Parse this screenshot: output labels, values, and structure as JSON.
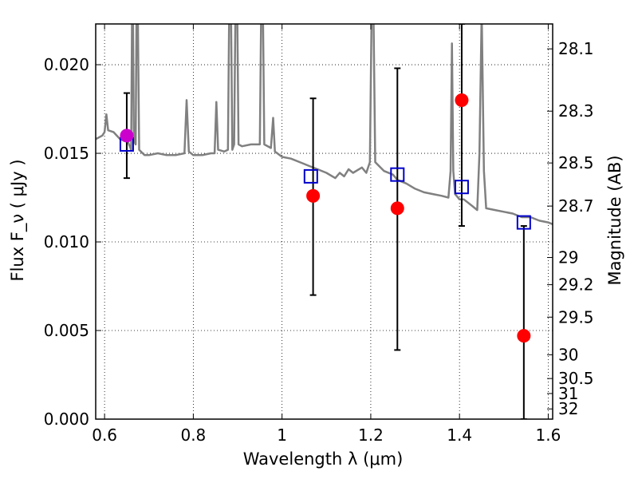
{
  "chart_data": {
    "type": "scatter",
    "xlabel": "Wavelength  λ (μm)",
    "ylabel": "Flux  F_ν  ( μJy )",
    "y2label": "Magnitude (AB)",
    "xlim": [
      0.58,
      1.61
    ],
    "ylim": [
      0.0,
      0.0223
    ],
    "grid": true,
    "x_ticks": [
      {
        "value": 0.6,
        "label": "0.6"
      },
      {
        "value": 0.8,
        "label": "0.8"
      },
      {
        "value": 1.0,
        "label": "1"
      },
      {
        "value": 1.2,
        "label": "1.2"
      },
      {
        "value": 1.4,
        "label": "1.4"
      },
      {
        "value": 1.6,
        "label": "1.6"
      }
    ],
    "y_ticks": [
      {
        "value": 0.0,
        "label": "0.000"
      },
      {
        "value": 0.005,
        "label": "0.005"
      },
      {
        "value": 0.01,
        "label": "0.010"
      },
      {
        "value": 0.015,
        "label": "0.015"
      },
      {
        "value": 0.02,
        "label": "0.020"
      }
    ],
    "mag_ticks": [
      {
        "value": 28.1,
        "label": "28.1"
      },
      {
        "value": 28.3,
        "label": "28.3"
      },
      {
        "value": 28.5,
        "label": "28.5"
      },
      {
        "value": 28.7,
        "label": "28.7"
      },
      {
        "value": 29.0,
        "label": "29"
      },
      {
        "value": 29.2,
        "label": "29.2"
      },
      {
        "value": 29.5,
        "label": "29.5"
      },
      {
        "value": 30.0,
        "label": "30"
      },
      {
        "value": 30.5,
        "label": "30.5"
      },
      {
        "value": 31.0,
        "label": "31"
      },
      {
        "value": 32.0,
        "label": "32"
      }
    ],
    "series": [
      {
        "kind": "line",
        "color": "#808080",
        "points": [
          [
            0.58,
            0.0158
          ],
          [
            0.595,
            0.016
          ],
          [
            0.6,
            0.0162
          ],
          [
            0.604,
            0.0172
          ],
          [
            0.608,
            0.0163
          ],
          [
            0.62,
            0.0162
          ],
          [
            0.635,
            0.0158
          ],
          [
            0.645,
            0.0157
          ],
          [
            0.65,
            0.0158
          ],
          [
            0.655,
            0.0155
          ],
          [
            0.66,
            0.0152
          ],
          [
            0.662,
            0.023
          ],
          [
            0.664,
            0.023
          ],
          [
            0.666,
            0.016
          ],
          [
            0.668,
            0.0156
          ],
          [
            0.67,
            0.0155
          ],
          [
            0.672,
            0.023
          ],
          [
            0.675,
            0.023
          ],
          [
            0.678,
            0.0152
          ],
          [
            0.69,
            0.0149
          ],
          [
            0.7,
            0.0149
          ],
          [
            0.72,
            0.015
          ],
          [
            0.74,
            0.0149
          ],
          [
            0.76,
            0.0149
          ],
          [
            0.78,
            0.015
          ],
          [
            0.785,
            0.018
          ],
          [
            0.79,
            0.0151
          ],
          [
            0.8,
            0.0149
          ],
          [
            0.82,
            0.0149
          ],
          [
            0.84,
            0.015
          ],
          [
            0.848,
            0.015
          ],
          [
            0.852,
            0.0179
          ],
          [
            0.856,
            0.0152
          ],
          [
            0.87,
            0.0151
          ],
          [
            0.878,
            0.0152
          ],
          [
            0.881,
            0.023
          ],
          [
            0.885,
            0.023
          ],
          [
            0.888,
            0.0152
          ],
          [
            0.892,
            0.0155
          ],
          [
            0.895,
            0.023
          ],
          [
            0.899,
            0.023
          ],
          [
            0.902,
            0.0155
          ],
          [
            0.91,
            0.0154
          ],
          [
            0.93,
            0.0155
          ],
          [
            0.95,
            0.0155
          ],
          [
            0.953,
            0.023
          ],
          [
            0.957,
            0.023
          ],
          [
            0.96,
            0.0155
          ],
          [
            0.975,
            0.0153
          ],
          [
            0.98,
            0.017
          ],
          [
            0.984,
            0.0151
          ],
          [
            1.0,
            0.0148
          ],
          [
            1.02,
            0.0147
          ],
          [
            1.04,
            0.0145
          ],
          [
            1.06,
            0.0143
          ],
          [
            1.08,
            0.0141
          ],
          [
            1.1,
            0.0139
          ],
          [
            1.12,
            0.0136
          ],
          [
            1.13,
            0.0139
          ],
          [
            1.14,
            0.0137
          ],
          [
            1.15,
            0.0141
          ],
          [
            1.16,
            0.0139
          ],
          [
            1.18,
            0.0142
          ],
          [
            1.19,
            0.0139
          ],
          [
            1.198,
            0.0145
          ],
          [
            1.202,
            0.023
          ],
          [
            1.206,
            0.023
          ],
          [
            1.21,
            0.0145
          ],
          [
            1.23,
            0.014
          ],
          [
            1.25,
            0.0138
          ],
          [
            1.26,
            0.0135
          ],
          [
            1.28,
            0.0133
          ],
          [
            1.3,
            0.013
          ],
          [
            1.32,
            0.0128
          ],
          [
            1.34,
            0.0127
          ],
          [
            1.36,
            0.0126
          ],
          [
            1.375,
            0.0125
          ],
          [
            1.38,
            0.014
          ],
          [
            1.383,
            0.0212
          ],
          [
            1.386,
            0.014
          ],
          [
            1.39,
            0.0127
          ],
          [
            1.4,
            0.0124
          ],
          [
            1.41,
            0.0124
          ],
          [
            1.42,
            0.0122
          ],
          [
            1.43,
            0.012
          ],
          [
            1.44,
            0.0118
          ],
          [
            1.445,
            0.015
          ],
          [
            1.45,
            0.023
          ],
          [
            1.455,
            0.014
          ],
          [
            1.46,
            0.0119
          ],
          [
            1.48,
            0.0118
          ],
          [
            1.5,
            0.0117
          ],
          [
            1.52,
            0.0116
          ],
          [
            1.54,
            0.0114
          ],
          [
            1.56,
            0.0114
          ],
          [
            1.58,
            0.0112
          ],
          [
            1.6,
            0.0111
          ],
          [
            1.61,
            0.011
          ]
        ]
      },
      {
        "kind": "squares",
        "color": "#0000cc",
        "points": [
          [
            0.65,
            0.0155
          ],
          [
            1.065,
            0.0137
          ],
          [
            1.26,
            0.0138
          ],
          [
            1.405,
            0.0131
          ],
          [
            1.545,
            0.0111
          ]
        ]
      },
      {
        "kind": "errorbar-points",
        "color": "#ff0000",
        "points": [
          {
            "x": 1.07,
            "y": 0.0126,
            "ylo": 0.007,
            "yhi": 0.0181
          },
          {
            "x": 1.26,
            "y": 0.0119,
            "ylo": 0.0039,
            "yhi": 0.0198
          },
          {
            "x": 1.405,
            "y": 0.018,
            "ylo": 0.0109,
            "yhi": 0.0223
          },
          {
            "x": 1.545,
            "y": 0.0047,
            "ylo": 0.0,
            "yhi": 0.0109
          }
        ]
      },
      {
        "kind": "errorbar-points",
        "color": "#cc00cc",
        "points": [
          {
            "x": 0.65,
            "y": 0.016,
            "ylo": 0.0136,
            "yhi": 0.0184
          }
        ]
      }
    ]
  }
}
